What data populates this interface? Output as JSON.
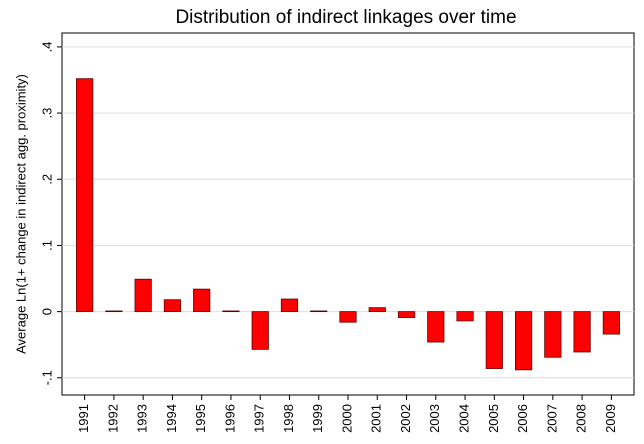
{
  "chart_data": {
    "type": "bar",
    "title": "Distribution of indirect linkages over time",
    "y_label": "Average Ln(1+ change in indirect agg. proximity)",
    "categories": [
      "1991",
      "1992",
      "1993",
      "1994",
      "1995",
      "1996",
      "1997",
      "1998",
      "1999",
      "2000",
      "2001",
      "2002",
      "2003",
      "2004",
      "2005",
      "2006",
      "2007",
      "2008",
      "2009"
    ],
    "values": [
      0.352,
      0.001,
      0.049,
      0.018,
      0.034,
      0.001,
      -0.057,
      0.019,
      0.001,
      -0.016,
      0.006,
      -0.009,
      -0.046,
      -0.014,
      -0.086,
      -0.088,
      -0.069,
      -0.061,
      -0.034
    ],
    "color": "#ff0000",
    "ylim": [
      -0.126,
      0.421
    ],
    "yticks": [
      {
        "value": -0.1,
        "label": "-.1"
      },
      0,
      {
        "value": 0.1,
        "label": ".1"
      },
      {
        "value": 0.2,
        "label": ".2"
      },
      {
        "value": 0.3,
        "label": ".3"
      },
      {
        "value": 0.4,
        "label": ".4"
      }
    ],
    "grid": true
  }
}
